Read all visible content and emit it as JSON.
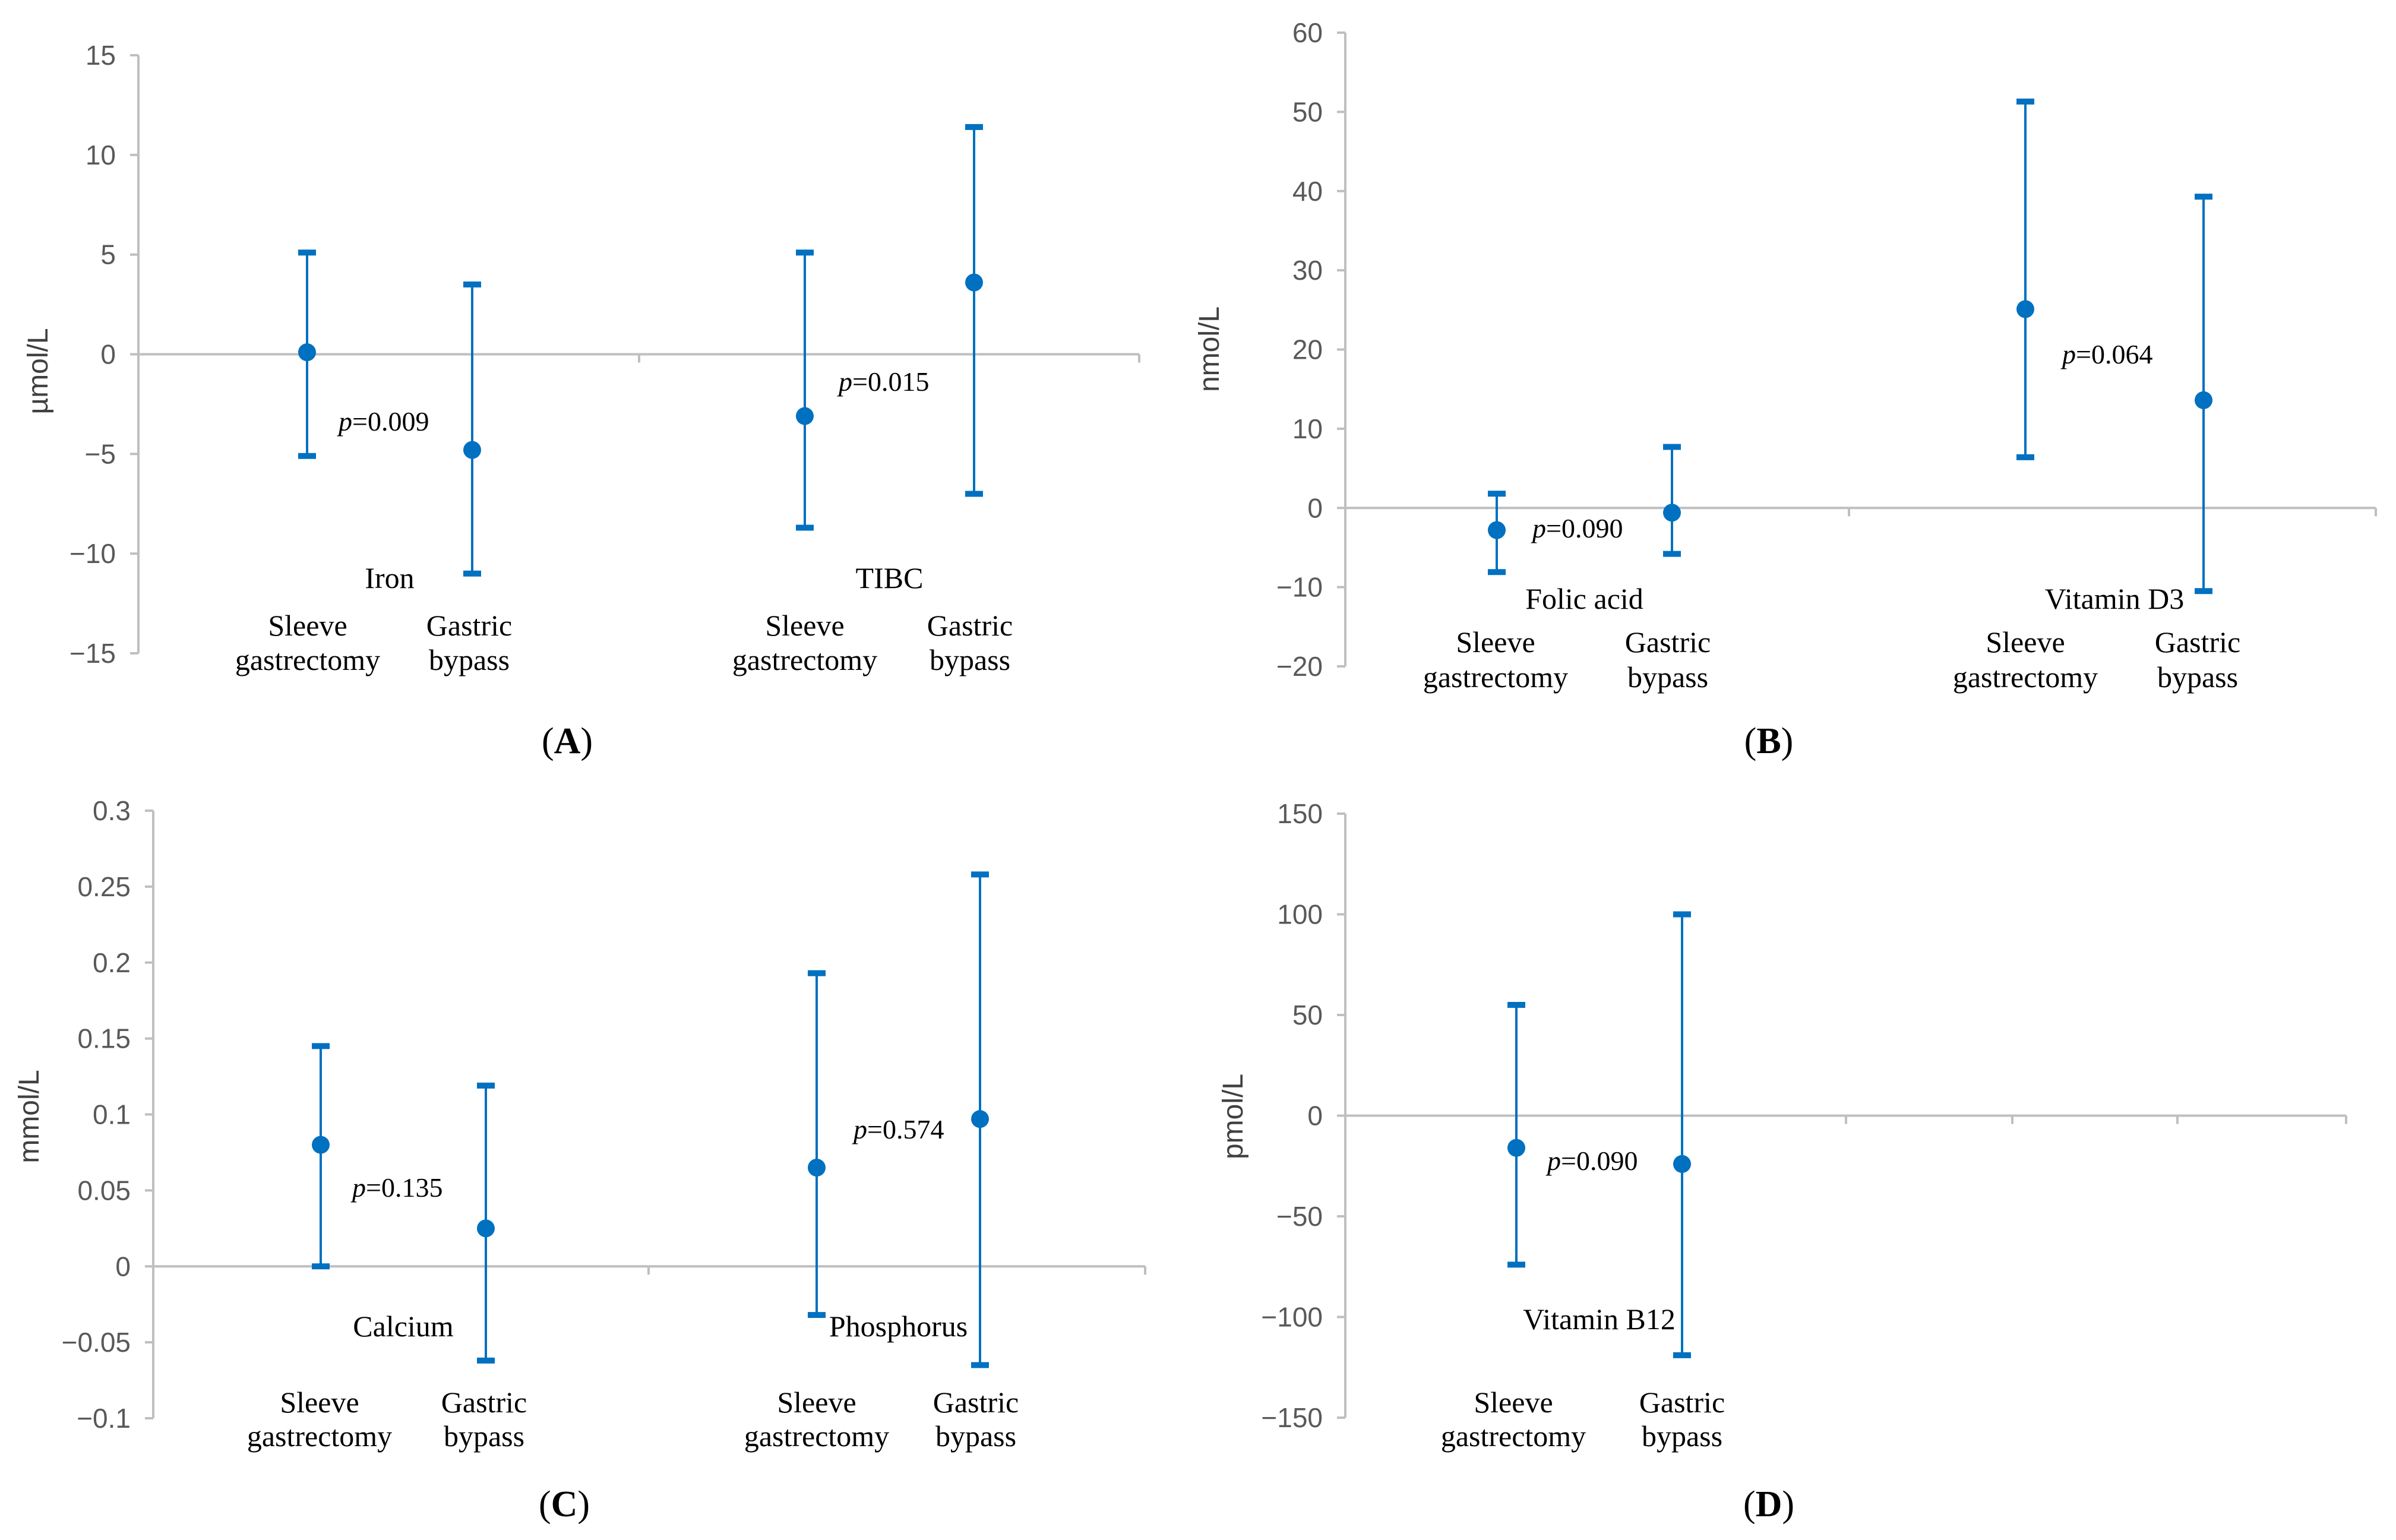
{
  "colors": {
    "marker": "#0070c0",
    "axis": "#bfbfbf",
    "text": "#000000",
    "tick_text": "#595959"
  },
  "chart_data": [
    {
      "panel": "A",
      "type": "errorbar",
      "ylabel": "µmol/L",
      "ylim": [
        -15,
        15
      ],
      "yticks": [
        15,
        10,
        5,
        0,
        -5,
        -10,
        -15
      ],
      "group_labels": [
        "Sleeve gastrectomy",
        "Gastric bypass"
      ],
      "groups": [
        {
          "name": "Iron",
          "p_value": "0.009",
          "points": [
            {
              "group": "Sleeve gastrectomy",
              "mean": 0.1,
              "lower": -5.1,
              "upper": 5.1
            },
            {
              "group": "Gastric bypass",
              "mean": -4.8,
              "lower": -11.0,
              "upper": 3.5
            }
          ]
        },
        {
          "name": "TIBC",
          "p_value": "0.015",
          "points": [
            {
              "group": "Sleeve gastrectomy",
              "mean": -3.1,
              "lower": -8.7,
              "upper": 5.1
            },
            {
              "group": "Gastric bypass",
              "mean": 3.6,
              "lower": -7.0,
              "upper": 11.4
            }
          ]
        }
      ]
    },
    {
      "panel": "B",
      "type": "errorbar",
      "ylabel": "nmol/L",
      "ylim": [
        -20,
        60
      ],
      "yticks": [
        60,
        50,
        40,
        30,
        20,
        10,
        0,
        -10,
        -20
      ],
      "group_labels": [
        "Sleeve gastrectomy",
        "Gastric bypass"
      ],
      "groups": [
        {
          "name": "Folic acid",
          "p_value": "0.090",
          "points": [
            {
              "group": "Sleeve gastrectomy",
              "mean": -2.8,
              "lower": -8.1,
              "upper": 1.8
            },
            {
              "group": "Gastric bypass",
              "mean": -0.6,
              "lower": -5.8,
              "upper": 7.7
            }
          ]
        },
        {
          "name": "Vitamin D3",
          "p_value": "0.064",
          "points": [
            {
              "group": "Sleeve gastrectomy",
              "mean": 25.1,
              "lower": 6.4,
              "upper": 51.3
            },
            {
              "group": "Gastric bypass",
              "mean": 13.6,
              "lower": -10.5,
              "upper": 39.3
            }
          ]
        }
      ]
    },
    {
      "panel": "C",
      "type": "errorbar",
      "ylabel": "mmol/L",
      "ylim": [
        -0.1,
        0.3
      ],
      "yticks": [
        "0.3",
        "0.25",
        "0.2",
        "0.15",
        "0.1",
        "0.05",
        "0",
        "−0.05",
        "−0.1"
      ],
      "group_labels": [
        "Sleeve gastrectomy",
        "Gastric bypass"
      ],
      "groups": [
        {
          "name": "Calcium",
          "p_value": "0.135",
          "points": [
            {
              "group": "Sleeve gastrectomy",
              "mean": 0.08,
              "lower": 0.0,
              "upper": 0.145
            },
            {
              "group": "Gastric bypass",
              "mean": 0.025,
              "lower": -0.062,
              "upper": 0.119
            }
          ]
        },
        {
          "name": "Phosphorus",
          "p_value": "0.574",
          "points": [
            {
              "group": "Sleeve gastrectomy",
              "mean": 0.065,
              "lower": -0.032,
              "upper": 0.193
            },
            {
              "group": "Gastric bypass",
              "mean": 0.097,
              "lower": -0.065,
              "upper": 0.258
            }
          ]
        }
      ]
    },
    {
      "panel": "D",
      "type": "errorbar",
      "ylabel": "pmol/L",
      "ylim": [
        -150,
        150
      ],
      "yticks": [
        150,
        100,
        50,
        0,
        -50,
        -100,
        -150
      ],
      "group_labels": [
        "Sleeve gastrectomy",
        "Gastric bypass"
      ],
      "groups": [
        {
          "name": "Vitamin B12",
          "p_value": "0.090",
          "points": [
            {
              "group": "Sleeve gastrectomy",
              "mean": -16,
              "lower": -74,
              "upper": 55
            },
            {
              "group": "Gastric bypass",
              "mean": -24,
              "lower": -119,
              "upper": 100
            }
          ]
        }
      ]
    }
  ]
}
